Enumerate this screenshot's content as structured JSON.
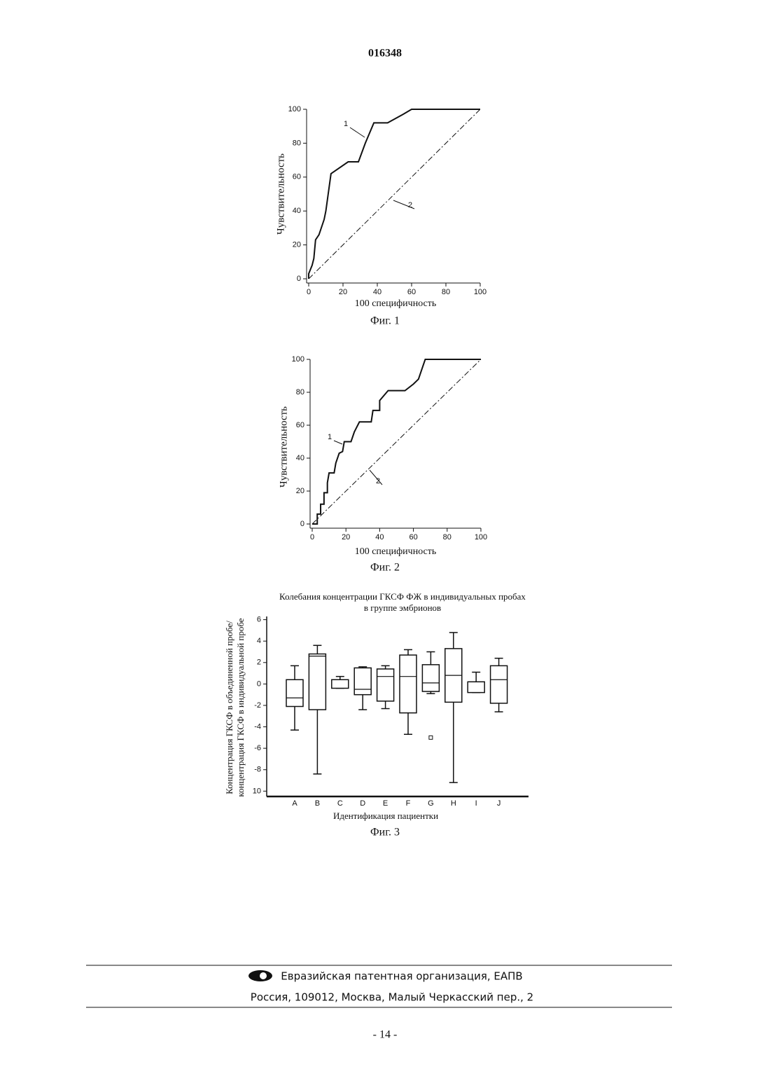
{
  "header": {
    "number": "016348"
  },
  "chart_data": [
    {
      "type": "line",
      "caption": "Фиг. 1",
      "xlabel": "100 специфичность",
      "ylabel": "Чувствительность",
      "xlim": [
        0,
        100
      ],
      "ylim": [
        0,
        100
      ],
      "xticks": [
        0,
        20,
        40,
        60,
        80,
        100
      ],
      "yticks": [
        0,
        20,
        40,
        60,
        80,
        100
      ],
      "series": [
        {
          "name": "1",
          "color": "#111111",
          "style": "solid",
          "x": [
            0,
            0,
            2,
            3,
            4,
            6,
            9,
            10,
            13,
            23,
            29,
            33,
            38,
            46,
            55,
            60,
            100
          ],
          "values": [
            0,
            3,
            8,
            12,
            23,
            26,
            35,
            40,
            62,
            69,
            69,
            80,
            92,
            92,
            97,
            100,
            100
          ]
        },
        {
          "name": "2",
          "color": "#111111",
          "style": "dashdot",
          "x": [
            0,
            100
          ],
          "values": [
            0,
            100
          ]
        }
      ]
    },
    {
      "type": "line",
      "caption": "Фиг. 2",
      "xlabel": "100 специфичность",
      "ylabel": "Чувствительность",
      "xlim": [
        0,
        100
      ],
      "ylim": [
        0,
        100
      ],
      "xticks": [
        0,
        20,
        40,
        60,
        80,
        100
      ],
      "yticks": [
        0,
        20,
        40,
        60,
        80,
        100
      ],
      "series": [
        {
          "name": "1",
          "color": "#111111",
          "style": "solid",
          "x": [
            0,
            3,
            3,
            5,
            5,
            7,
            7,
            9,
            9,
            10,
            13,
            14,
            16,
            18,
            19,
            23,
            25,
            28,
            35,
            36,
            40,
            40,
            45,
            55,
            60,
            63,
            65,
            67,
            100
          ],
          "values": [
            0,
            0,
            6,
            6,
            12,
            12,
            19,
            19,
            25,
            31,
            31,
            37,
            43,
            44,
            50,
            50,
            56,
            62,
            62,
            69,
            69,
            75,
            81,
            81,
            85,
            88,
            94,
            100,
            100
          ]
        },
        {
          "name": "2",
          "color": "#111111",
          "style": "dashdot",
          "x": [
            0,
            100
          ],
          "values": [
            0,
            100
          ]
        }
      ]
    },
    {
      "type": "box",
      "caption": "Фиг. 3",
      "title": [
        "Колебания концентрации ГКСФ ФЖ в индивидуальных пробах",
        "в группе эмбрионов"
      ],
      "xlabel": "Идентификация пациентки",
      "ylabel": [
        "Концентрация ГКСФ в объединенной пробе/",
        "концентрация ГКСФ в индивидуальной пробе"
      ],
      "ylim": [
        -10.5,
        6.3
      ],
      "yticks": [
        6,
        4,
        2,
        0,
        -2,
        -4,
        -6,
        -8,
        {
          "value": -10,
          "label": "10"
        }
      ],
      "categories": [
        "A",
        "B",
        "C",
        "D",
        "E",
        "F",
        "G",
        "H",
        "I",
        "J"
      ],
      "whisker_low": [
        -4.3,
        -8.4,
        -0.4,
        -2.4,
        -2.3,
        -4.7,
        -0.9,
        -9.2,
        -0.8,
        -2.6
      ],
      "q1": [
        -2.1,
        -2.4,
        -0.4,
        -1.0,
        -1.6,
        -2.7,
        -0.7,
        -1.7,
        -0.8,
        -1.8
      ],
      "median": [
        -1.3,
        2.6,
        0.4,
        -0.5,
        0.7,
        0.7,
        0.1,
        0.8,
        0.2,
        0.4
      ],
      "q3": [
        0.4,
        2.8,
        0.4,
        1.5,
        1.4,
        2.7,
        1.8,
        3.3,
        0.2,
        1.7
      ],
      "whisker_high": [
        1.7,
        3.6,
        0.7,
        1.6,
        1.7,
        3.2,
        3.0,
        4.8,
        1.1,
        2.4
      ],
      "outliers": [
        [],
        [],
        [],
        [],
        [],
        [],
        [
          -5
        ],
        [],
        [],
        []
      ],
      "color": "#111111"
    }
  ],
  "footer": {
    "organization": "Евразийская патентная организация, ЕАПВ",
    "address": "Россия, 109012, Москва, Малый Черкасский пер., 2",
    "page": "- 14 -"
  }
}
